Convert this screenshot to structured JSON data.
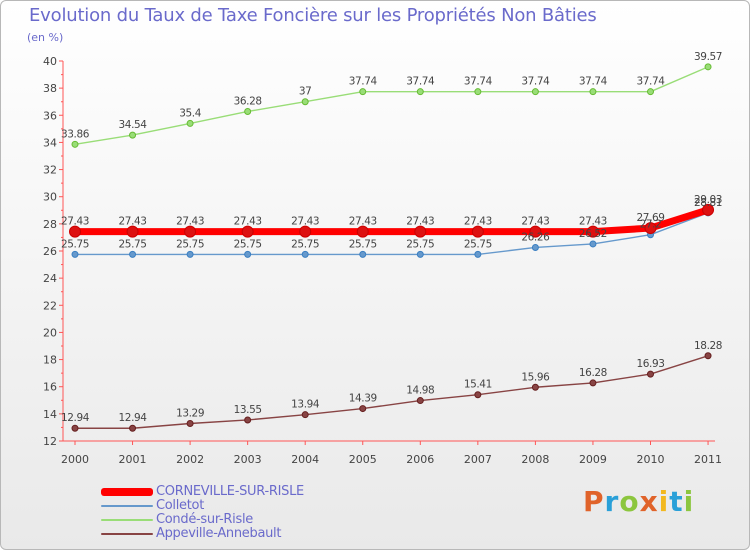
{
  "title": "Evolution du Taux de Taxe Foncière sur les Propriétés Non Bâties",
  "subtitle": "(en %)",
  "logo": {
    "text": "Proxiti",
    "colors": [
      "#e0632a",
      "#2aa0d8",
      "#8cc63e",
      "#e0632a",
      "#f2b81f",
      "#2aa0d8",
      "#8cc63e"
    ]
  },
  "chart_data": {
    "type": "line",
    "title": "Evolution du Taux de Taxe Foncière sur les Propriétés Non Bâties",
    "ylabel": "(en %)",
    "xlabel": "",
    "categories": [
      "2000",
      "2001",
      "2002",
      "2003",
      "2004",
      "2005",
      "2006",
      "2007",
      "2008",
      "2009",
      "2010",
      "2011"
    ],
    "ylim": [
      12,
      40
    ],
    "yticks": [
      12,
      14,
      16,
      18,
      20,
      22,
      24,
      26,
      28,
      30,
      32,
      34,
      36,
      38,
      40
    ],
    "grid": false,
    "legend": "bottom-left",
    "series": [
      {
        "name": "CORNEVILLE-SUR-RISLE",
        "color": "#ff0000",
        "marker": "#cc0000",
        "bold": true,
        "values": [
          27.43,
          27.43,
          27.43,
          27.43,
          27.43,
          27.43,
          27.43,
          27.43,
          27.43,
          27.43,
          27.69,
          29.03
        ],
        "labels": [
          "27.43",
          "27.43",
          "27.43",
          "27.43",
          "27.43",
          "27.43",
          "27.43",
          "27.43",
          "27.43",
          "27.43",
          "27.69",
          "29.03"
        ]
      },
      {
        "name": "Colletot",
        "color": "#6699cc",
        "marker": "#3a7fc2",
        "bold": false,
        "values": [
          25.75,
          25.75,
          25.75,
          25.75,
          25.75,
          25.75,
          25.75,
          25.75,
          26.26,
          26.52,
          27.2,
          28.81
        ],
        "labels": [
          "25.75",
          "25.75",
          "25.75",
          "25.75",
          "25.75",
          "25.75",
          "25.75",
          "25.75",
          "26.26",
          "26.52",
          "27.2",
          "28.81"
        ]
      },
      {
        "name": "Condé-sur-Risle",
        "color": "#99dd77",
        "marker": "#66bb33",
        "bold": false,
        "values": [
          33.86,
          34.54,
          35.4,
          36.28,
          37,
          37.74,
          37.74,
          37.74,
          37.74,
          37.74,
          37.74,
          39.57
        ],
        "labels": [
          "33.86",
          "34.54",
          "35.4",
          "36.28",
          "37",
          "37.74",
          "37.74",
          "37.74",
          "37.74",
          "37.74",
          "37.74",
          "39.57"
        ]
      },
      {
        "name": "Appeville-Annebault",
        "color": "#884444",
        "marker": "#661f1f",
        "bold": false,
        "values": [
          12.94,
          12.94,
          13.29,
          13.55,
          13.94,
          14.39,
          14.98,
          15.41,
          15.96,
          16.28,
          16.93,
          18.28
        ],
        "labels": [
          "12.94",
          "12.94",
          "13.29",
          "13.55",
          "13.94",
          "14.39",
          "14.98",
          "15.41",
          "15.96",
          "16.28",
          "16.93",
          "18.28"
        ]
      }
    ]
  }
}
